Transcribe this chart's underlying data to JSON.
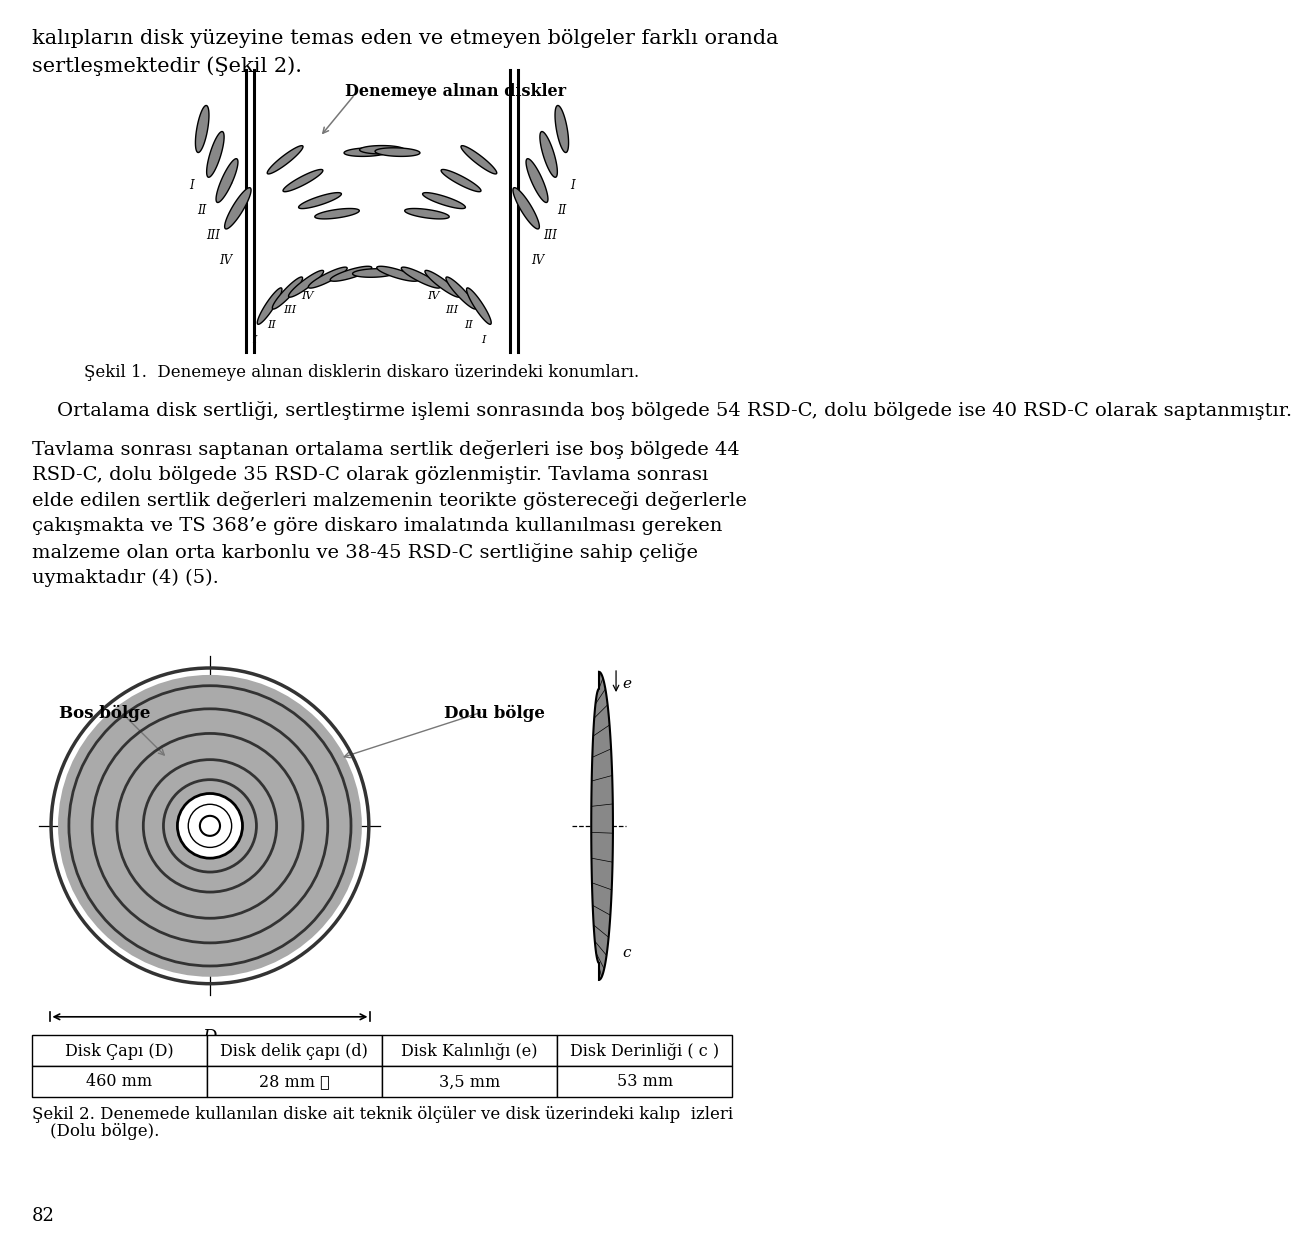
{
  "bg_color": "#ffffff",
  "text_color": "#000000",
  "page_width": 9.6,
  "page_height": 15.72,
  "top_text": "kalıpların disk yüzeyine temas eden ve etmeyen bölgeler farklı oranda\nsertleşmektedir (Şekil 2).",
  "fig1_caption": "Şekil 1.  Denemeye alınan disklerin diskaro üzerindeki konumları.",
  "main_paragraph_1": "    Ortalama disk sertliği, sertleştirme işlemi sonrasında boş bölgede 54 RSD-C, dolu bölgede ise 40 RSD-C olarak saptanmıştır.",
  "main_paragraph_2": "Tavlama sonrası saptanan ortalama sertlik değerleri ise boş bölgede 44\nRSD-C, dolu bölgede 35 RSD-C olarak gözlenmiştir. Tavlama sonrası\nelde edilen sertlik değerleri malzemenin teorikte göstereceği değerlerle\nçakışmakta ve TS 368’e göre diskaro imalatında kullanılması gereken\nmalzeme olan orta karbonlu ve 38-45 RSD-C sertliğine sahip çeliğe\nuymaktadır (4) (5).",
  "table_headers": [
    "Disk Çapı (D)",
    "Disk delik çapı (d)",
    "Disk Kalınlığı (e)",
    "Disk Derinliği ( c )"
  ],
  "table_values": [
    "460 mm",
    "28 mm ☒",
    "3,5 mm",
    "53 mm"
  ],
  "fig2_caption_1": "Şekil 2. Denemede kullanılan diske ait teknik ölçüler ve disk üzerindeki kalıp  izleri",
  "fig2_caption_2": "(Dolu bölge).",
  "page_number": "82",
  "label_bos": "Bos bölge",
  "label_dolu": "Dolu bölge",
  "label_D": "D",
  "label_c": "c",
  "label_e": "e",
  "fig1_label": "Denemeye alınan diskler"
}
